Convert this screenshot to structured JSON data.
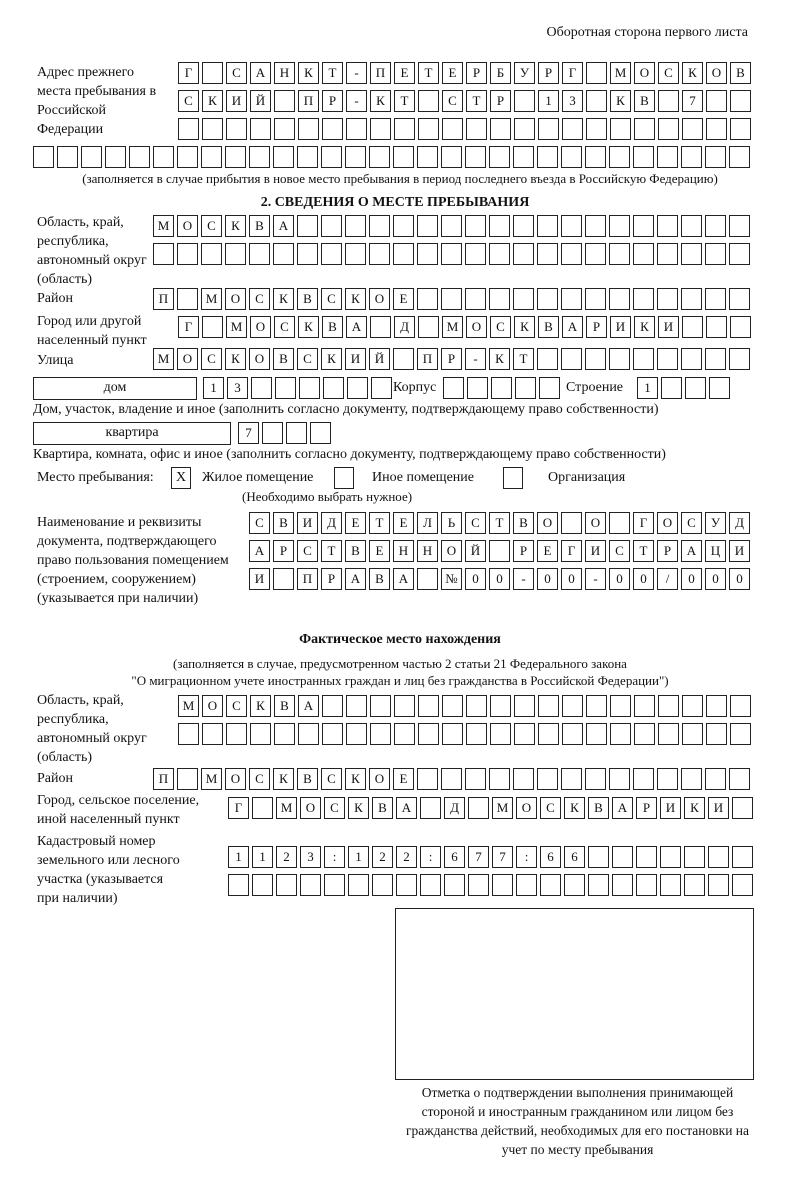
{
  "header": {
    "side_note": "Оборотная сторона первого листа"
  },
  "previous_address": {
    "label": "Адрес прежнего места пребывания в Российской Федерации",
    "rows": [
      [
        "Г",
        "",
        "С",
        "А",
        "Н",
        "К",
        "Т",
        "-",
        "П",
        "Е",
        "Т",
        "Е",
        "Р",
        "Б",
        "У",
        "Р",
        "Г",
        "",
        "М",
        "О",
        "С",
        "К",
        "О",
        "В"
      ],
      [
        "С",
        "К",
        "И",
        "Й",
        "",
        "П",
        "Р",
        "-",
        "К",
        "Т",
        "",
        "С",
        "Т",
        "Р",
        "",
        "1",
        "3",
        "",
        "К",
        "В",
        "",
        "7",
        "",
        ""
      ],
      [
        "",
        "",
        "",
        "",
        "",
        "",
        "",
        "",
        "",
        "",
        "",
        "",
        "",
        "",
        "",
        "",
        "",
        "",
        "",
        "",
        "",
        "",
        "",
        ""
      ],
      [
        "",
        "",
        "",
        "",
        "",
        "",
        "",
        "",
        "",
        "",
        "",
        "",
        "",
        "",
        "",
        "",
        "",
        "",
        "",
        "",
        "",
        "",
        "",
        "",
        "",
        "",
        "",
        "",
        "",
        ""
      ]
    ],
    "note": "(заполняется в случае прибытия в новое место пребывания в период последнего въезда в Российскую Федерацию)"
  },
  "section2": {
    "title": "2. СВЕДЕНИЯ О МЕСТЕ ПРЕБЫВАНИЯ",
    "region_label": "Область, край, республика, автономный округ (область)",
    "region_rows": [
      [
        "М",
        "О",
        "С",
        "К",
        "В",
        "А",
        "",
        "",
        "",
        "",
        "",
        "",
        "",
        "",
        "",
        "",
        "",
        "",
        "",
        "",
        "",
        "",
        "",
        "",
        ""
      ],
      [
        "",
        "",
        "",
        "",
        "",
        "",
        "",
        "",
        "",
        "",
        "",
        "",
        "",
        "",
        "",
        "",
        "",
        "",
        "",
        "",
        "",
        "",
        "",
        "",
        ""
      ]
    ],
    "district_label": "Район",
    "district_row": [
      "П",
      "",
      "М",
      "О",
      "С",
      "К",
      "В",
      "С",
      "К",
      "О",
      "Е",
      "",
      "",
      "",
      "",
      "",
      "",
      "",
      "",
      "",
      "",
      "",
      "",
      "",
      ""
    ],
    "city_label": "Город или другой населенный пункт",
    "city_row": [
      "Г",
      "",
      "М",
      "О",
      "С",
      "К",
      "В",
      "А",
      "",
      "Д",
      "",
      "М",
      "О",
      "С",
      "К",
      "В",
      "А",
      "Р",
      "И",
      "К",
      "И",
      "",
      "",
      ""
    ],
    "street_label": "Улица",
    "street_row": [
      "М",
      "О",
      "С",
      "К",
      "О",
      "В",
      "С",
      "К",
      "И",
      "Й",
      "",
      "П",
      "Р",
      "-",
      "К",
      "Т",
      "",
      "",
      "",
      "",
      "",
      "",
      "",
      "",
      ""
    ],
    "house_type": "дом",
    "house_cells": [
      "1",
      "3",
      "",
      "",
      "",
      "",
      "",
      ""
    ],
    "korpus_label": "Корпус",
    "korpus_cells": [
      "",
      "",
      "",
      "",
      ""
    ],
    "building_label": "Строение",
    "building_cells": [
      "1",
      "",
      "",
      ""
    ],
    "house_note": "Дом, участок, владение и иное (заполнить согласно документу, подтверждающему право собственности)",
    "flat_type": "квартира",
    "flat_cells": [
      "7",
      "",
      "",
      ""
    ],
    "flat_note": "Квартира, комната, офис и иное (заполнить согласно документу, подтверждающему право собственности)",
    "stay_place_label": "Место пребывания:",
    "options": [
      {
        "label": "Жилое помещение",
        "checked": true,
        "mark": "Х"
      },
      {
        "label": "Иное помещение",
        "checked": false,
        "mark": ""
      },
      {
        "label": "Организация",
        "checked": false,
        "mark": ""
      }
    ],
    "choose_note": "(Необходимо выбрать нужное)",
    "doc_label": "Наименование и реквизиты документа, подтверждающего право пользования помещением (строением, сооружением) (указывается при наличии)",
    "doc_rows": [
      [
        "С",
        "В",
        "И",
        "Д",
        "Е",
        "Т",
        "Е",
        "Л",
        "Ь",
        "С",
        "Т",
        "В",
        "О",
        "",
        "О",
        "",
        "Г",
        "О",
        "С",
        "У",
        "Д"
      ],
      [
        "А",
        "Р",
        "С",
        "Т",
        "В",
        "Е",
        "Н",
        "Н",
        "О",
        "Й",
        "",
        "Р",
        "Е",
        "Г",
        "И",
        "С",
        "Т",
        "Р",
        "А",
        "Ц",
        "И"
      ],
      [
        "И",
        "",
        "П",
        "Р",
        "А",
        "В",
        "А",
        "",
        "№",
        "0",
        "0",
        "-",
        "0",
        "0",
        "-",
        "0",
        "0",
        "/",
        "0",
        "0",
        "0"
      ]
    ]
  },
  "actual": {
    "title": "Фактическое место нахождения",
    "note1": "(заполняется в случае, предусмотренном частью 2 статьи 21 Федерального закона",
    "note2": "\"О миграционном учете иностранных граждан и лиц без гражданства в Российской Федерации\")",
    "region_label": "Область, край, республика, автономный округ (область)",
    "region_rows": [
      [
        "М",
        "О",
        "С",
        "К",
        "В",
        "А",
        "",
        "",
        "",
        "",
        "",
        "",
        "",
        "",
        "",
        "",
        "",
        "",
        "",
        "",
        "",
        "",
        "",
        ""
      ],
      [
        "",
        "",
        "",
        "",
        "",
        "",
        "",
        "",
        "",
        "",
        "",
        "",
        "",
        "",
        "",
        "",
        "",
        "",
        "",
        "",
        "",
        "",
        "",
        ""
      ]
    ],
    "district_label": "Район",
    "district_row": [
      "П",
      "",
      "М",
      "О",
      "С",
      "К",
      "В",
      "С",
      "К",
      "О",
      "Е",
      "",
      "",
      "",
      "",
      "",
      "",
      "",
      "",
      "",
      "",
      "",
      "",
      "",
      ""
    ],
    "city_label": "Город, сельское поселение, иной населенный пункт",
    "city_row": [
      "Г",
      "",
      "М",
      "О",
      "С",
      "К",
      "В",
      "А",
      "",
      "Д",
      "",
      "М",
      "О",
      "С",
      "К",
      "В",
      "А",
      "Р",
      "И",
      "К",
      "И",
      ""
    ],
    "cadastre_label": "Кадастровый номер земельного или лесного участка (указывается при наличии)",
    "cadastre_rows": [
      [
        "1",
        "1",
        "2",
        "3",
        ":",
        "1",
        "2",
        "2",
        ":",
        "6",
        "7",
        "7",
        ":",
        "6",
        "6",
        "",
        "",
        "",
        "",
        "",
        "",
        ""
      ],
      [
        "",
        "",
        "",
        "",
        "",
        "",
        "",
        "",
        "",
        "",
        "",
        "",
        "",
        "",
        "",
        "",
        "",
        "",
        "",
        "",
        "",
        ""
      ]
    ],
    "stamp_caption": "Отметка о подтверждении выполнения принимающей стороной и иностранным гражданином или лицом без гражданства действий, необходимых для его постановки на учет по месту пребывания"
  }
}
